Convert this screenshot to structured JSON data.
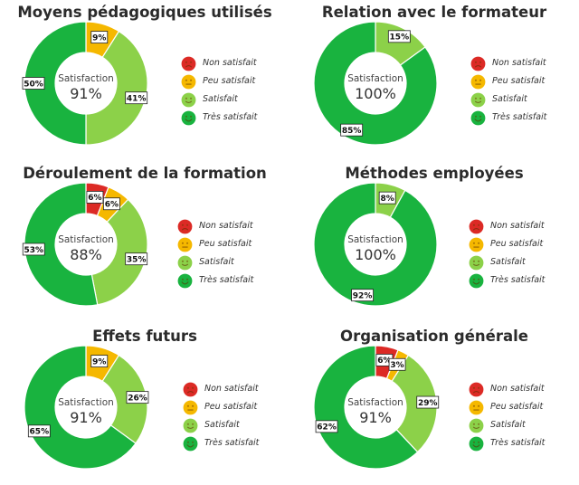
{
  "colors": {
    "non_satisfait": "#dc2a25",
    "peu_satisfait": "#f5b800",
    "satisfait": "#8cd149",
    "tres_satisfait": "#19b33f"
  },
  "legend": [
    {
      "key": "non_satisfait",
      "label": "Non satisfait",
      "icon": "frown-face-icon"
    },
    {
      "key": "peu_satisfait",
      "label": "Peu satisfait",
      "icon": "neutral-face-icon"
    },
    {
      "key": "satisfait",
      "label": "Satisfait",
      "icon": "smile-face-icon"
    },
    {
      "key": "tres_satisfait",
      "label": "Très satisfait",
      "icon": "big-smile-face-icon"
    }
  ],
  "chart_data": [
    {
      "type": "pie",
      "title": "Moyens pédagogiques utilisés",
      "center_label": "Satisfaction",
      "center_value": "91%",
      "categories": [
        "Non satisfait",
        "Peu satisfait",
        "Satisfait",
        "Très satisfait"
      ],
      "values": [
        0,
        9,
        41,
        50
      ]
    },
    {
      "type": "pie",
      "title": "Relation avec le formateur",
      "center_label": "Satisfaction",
      "center_value": "100%",
      "categories": [
        "Non satisfait",
        "Peu satisfait",
        "Satisfait",
        "Très satisfait"
      ],
      "values": [
        0,
        0,
        15,
        85
      ]
    },
    {
      "type": "pie",
      "title": "Déroulement de la formation",
      "center_label": "Satisfaction",
      "center_value": "88%",
      "categories": [
        "Non satisfait",
        "Peu satisfait",
        "Satisfait",
        "Très satisfait"
      ],
      "values": [
        6,
        6,
        35,
        53
      ]
    },
    {
      "type": "pie",
      "title": "Méthodes employées",
      "center_label": "Satisfaction",
      "center_value": "100%",
      "categories": [
        "Non satisfait",
        "Peu satisfait",
        "Satisfait",
        "Très satisfait"
      ],
      "values": [
        0,
        0,
        8,
        92
      ]
    },
    {
      "type": "pie",
      "title": "Effets futurs",
      "center_label": "Satisfaction",
      "center_value": "91%",
      "categories": [
        "Non satisfait",
        "Peu satisfait",
        "Satisfait",
        "Très satisfait"
      ],
      "values": [
        0,
        9,
        26,
        65
      ]
    },
    {
      "type": "pie",
      "title": "Organisation générale",
      "center_label": "Satisfaction",
      "center_value": "91%",
      "categories": [
        "Non satisfait",
        "Peu satisfait",
        "Satisfait",
        "Très satisfait"
      ],
      "values": [
        6,
        3,
        29,
        62
      ]
    }
  ]
}
